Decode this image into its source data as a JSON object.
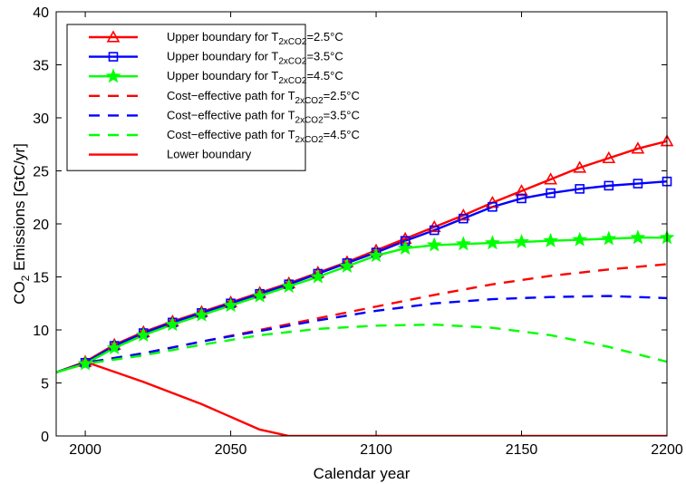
{
  "chart_data": {
    "type": "line",
    "xlabel": "Calendar year",
    "ylabel": {
      "base": "CO",
      "sub": "2",
      "rest": " Emissions [GtC/yr]"
    },
    "xlim": [
      1990,
      2200
    ],
    "ylim": [
      0,
      40
    ],
    "xticks": [
      2000,
      2050,
      2100,
      2150,
      2200
    ],
    "yticks": [
      0,
      5,
      10,
      15,
      20,
      25,
      30,
      35,
      40
    ],
    "grid": false,
    "legend_position": "top-left",
    "series": [
      {
        "name": "Upper boundary for T2xCO2=2.5°C",
        "label": {
          "pre": "Upper boundary for T",
          "sub": "2xCO2",
          "post": "=2.5°C"
        },
        "color": "#ff0000",
        "style": "solid",
        "marker": "triangle",
        "x": [
          1990,
          2000,
          2010,
          2020,
          2030,
          2040,
          2050,
          2060,
          2070,
          2080,
          2090,
          2100,
          2110,
          2120,
          2130,
          2140,
          2150,
          2160,
          2170,
          2180,
          2190,
          2200
        ],
        "y": [
          6.0,
          7.0,
          8.6,
          9.8,
          10.8,
          11.7,
          12.6,
          13.5,
          14.4,
          15.4,
          16.4,
          17.5,
          18.6,
          19.7,
          20.8,
          22.0,
          23.1,
          24.2,
          25.3,
          26.2,
          27.1,
          27.8
        ]
      },
      {
        "name": "Upper boundary for T2xCO2=3.5°C",
        "label": {
          "pre": "Upper boundary for T",
          "sub": "2xCO2",
          "post": "=3.5°C"
        },
        "color": "#0000ff",
        "style": "solid",
        "marker": "square",
        "x": [
          1990,
          2000,
          2010,
          2020,
          2030,
          2040,
          2050,
          2060,
          2070,
          2080,
          2090,
          2100,
          2110,
          2120,
          2130,
          2140,
          2150,
          2160,
          2170,
          2180,
          2190,
          2200
        ],
        "y": [
          6.0,
          6.9,
          8.5,
          9.7,
          10.7,
          11.6,
          12.5,
          13.4,
          14.3,
          15.3,
          16.3,
          17.3,
          18.4,
          19.4,
          20.5,
          21.6,
          22.4,
          22.9,
          23.3,
          23.6,
          23.8,
          24.0
        ]
      },
      {
        "name": "Upper boundary for T2xCO2=4.5°C",
        "label": {
          "pre": "Upper boundary for T",
          "sub": "2xCO2",
          "post": "=4.5°C"
        },
        "color": "#00ff00",
        "style": "solid",
        "marker": "star",
        "x": [
          1990,
          2000,
          2010,
          2020,
          2030,
          2040,
          2050,
          2060,
          2070,
          2080,
          2090,
          2100,
          2110,
          2120,
          2130,
          2140,
          2150,
          2160,
          2170,
          2180,
          2190,
          2200
        ],
        "y": [
          6.0,
          6.8,
          8.3,
          9.5,
          10.5,
          11.4,
          12.3,
          13.2,
          14.1,
          15.0,
          16.0,
          17.0,
          17.7,
          18.0,
          18.1,
          18.2,
          18.3,
          18.4,
          18.5,
          18.6,
          18.7,
          18.7
        ]
      },
      {
        "name": "Cost-effective path for T2xCO2=2.5°C",
        "label": {
          "pre": "Cost−effective path for T",
          "sub": "2xCO2",
          "post": "=2.5°C"
        },
        "color": "#ff0000",
        "style": "dashed",
        "marker": "none",
        "x": [
          1990,
          2000,
          2020,
          2040,
          2060,
          2080,
          2100,
          2120,
          2140,
          2160,
          2180,
          2200
        ],
        "y": [
          6.0,
          6.9,
          7.8,
          8.9,
          10.0,
          11.1,
          12.2,
          13.3,
          14.3,
          15.1,
          15.7,
          16.2
        ]
      },
      {
        "name": "Cost-effective path for T2xCO2=3.5°C",
        "label": {
          "pre": "Cost−effective path for T",
          "sub": "2xCO2",
          "post": "=3.5°C"
        },
        "color": "#0000ff",
        "style": "dashed",
        "marker": "none",
        "x": [
          1990,
          2000,
          2020,
          2040,
          2060,
          2080,
          2100,
          2120,
          2140,
          2160,
          2180,
          2200
        ],
        "y": [
          6.0,
          6.9,
          7.8,
          8.9,
          9.9,
          10.9,
          11.8,
          12.5,
          12.9,
          13.1,
          13.2,
          13.0
        ]
      },
      {
        "name": "Cost-effective path for T2xCO2=4.5°C",
        "label": {
          "pre": "Cost−effective path for T",
          "sub": "2xCO2",
          "post": "=4.5°C"
        },
        "color": "#00ff00",
        "style": "dashed",
        "marker": "none",
        "x": [
          1990,
          2000,
          2020,
          2040,
          2060,
          2080,
          2100,
          2120,
          2140,
          2160,
          2180,
          2200
        ],
        "y": [
          6.0,
          6.8,
          7.6,
          8.6,
          9.5,
          10.1,
          10.4,
          10.5,
          10.2,
          9.5,
          8.4,
          7.0
        ]
      },
      {
        "name": "Lower boundary",
        "label": {
          "pre": "Lower boundary",
          "sub": "",
          "post": ""
        },
        "color": "#ff0000",
        "style": "solid",
        "marker": "none",
        "x": [
          2000,
          2020,
          2040,
          2060,
          2070,
          2100,
          2150,
          2200
        ],
        "y": [
          7.0,
          5.1,
          3.0,
          0.6,
          0.0,
          0.0,
          0.0,
          0.0
        ]
      }
    ]
  }
}
